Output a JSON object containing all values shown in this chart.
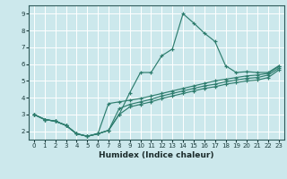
{
  "xlabel": "Humidex (Indice chaleur)",
  "bg_color": "#cce8ec",
  "grid_color": "#ffffff",
  "line_color": "#2e7d6e",
  "xlim": [
    -0.5,
    23.5
  ],
  "ylim": [
    1.5,
    9.5
  ],
  "xticks": [
    0,
    1,
    2,
    3,
    4,
    5,
    6,
    7,
    8,
    9,
    10,
    11,
    12,
    13,
    14,
    15,
    16,
    17,
    18,
    19,
    20,
    21,
    22,
    23
  ],
  "yticks": [
    2,
    3,
    4,
    5,
    6,
    7,
    8,
    9
  ],
  "lines": [
    {
      "x": [
        0,
        1,
        2,
        3,
        4,
        5,
        6,
        7,
        8,
        9,
        10,
        11,
        12,
        13,
        14,
        15,
        16,
        17,
        18,
        19,
        20,
        21,
        22,
        23
      ],
      "y": [
        3.0,
        2.7,
        2.6,
        2.35,
        1.85,
        1.7,
        1.85,
        2.05,
        3.0,
        4.3,
        5.5,
        5.5,
        6.5,
        6.9,
        9.0,
        8.45,
        7.85,
        7.35,
        5.9,
        5.5,
        5.55,
        5.5,
        5.5,
        5.9
      ]
    },
    {
      "x": [
        0,
        1,
        2,
        3,
        4,
        5,
        6,
        7,
        8,
        9,
        10,
        11,
        12,
        13,
        14,
        15,
        16,
        17,
        18,
        19,
        20,
        21,
        22,
        23
      ],
      "y": [
        3.0,
        2.7,
        2.6,
        2.35,
        1.85,
        1.7,
        1.85,
        3.65,
        3.75,
        3.85,
        3.95,
        4.1,
        4.25,
        4.4,
        4.55,
        4.7,
        4.85,
        5.0,
        5.1,
        5.2,
        5.3,
        5.35,
        5.45,
        5.85
      ]
    },
    {
      "x": [
        0,
        1,
        2,
        3,
        4,
        5,
        6,
        7,
        8,
        9,
        10,
        11,
        12,
        13,
        14,
        15,
        16,
        17,
        18,
        19,
        20,
        21,
        22,
        23
      ],
      "y": [
        3.0,
        2.7,
        2.6,
        2.35,
        1.85,
        1.7,
        1.85,
        2.05,
        3.35,
        3.6,
        3.75,
        3.9,
        4.1,
        4.25,
        4.4,
        4.55,
        4.7,
        4.8,
        4.95,
        5.05,
        5.15,
        5.2,
        5.35,
        5.75
      ]
    },
    {
      "x": [
        0,
        1,
        2,
        3,
        4,
        5,
        6,
        7,
        8,
        9,
        10,
        11,
        12,
        13,
        14,
        15,
        16,
        17,
        18,
        19,
        20,
        21,
        22,
        23
      ],
      "y": [
        3.0,
        2.7,
        2.6,
        2.35,
        1.85,
        1.7,
        1.85,
        2.05,
        3.0,
        3.45,
        3.6,
        3.75,
        3.95,
        4.1,
        4.25,
        4.4,
        4.55,
        4.65,
        4.8,
        4.9,
        5.0,
        5.05,
        5.2,
        5.65
      ]
    }
  ]
}
